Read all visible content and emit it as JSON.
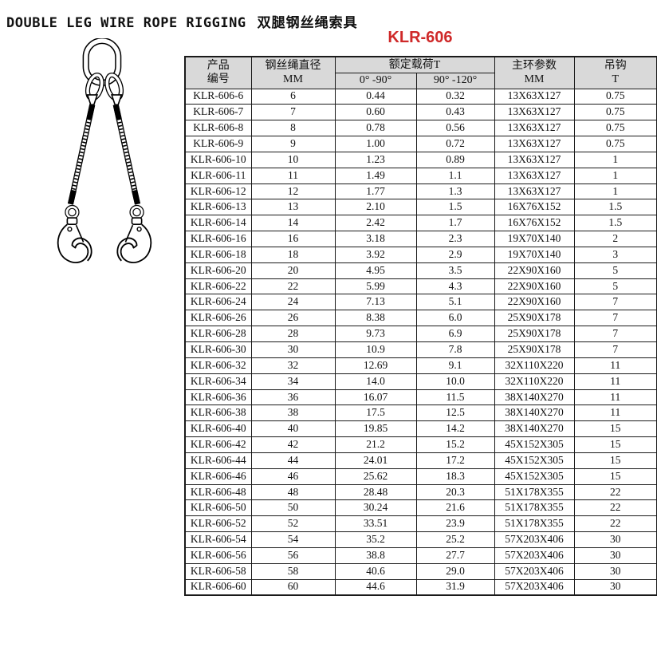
{
  "page": {
    "title_en": "DOUBLE LEG WIRE ROPE RIGGING",
    "title_zh": "双腿钢丝绳索具",
    "model": "KLR-606"
  },
  "colors": {
    "model_red": "#cf2929",
    "header_bg": "#d9d9d9",
    "border": "#1a1a1a"
  },
  "illustration": {
    "name": "double-leg-wire-rope-sling-line-drawing",
    "parts": [
      "master-link",
      "connecting-links",
      "wire-rope-legs",
      "self-locking-hooks"
    ]
  },
  "table": {
    "headers": {
      "product_code": {
        "line1": "产品",
        "line2": "编号"
      },
      "rope_diameter": {
        "line1": "钢丝绳直径",
        "line2": "MM"
      },
      "rated_load": "额定载荷T",
      "angle_0_90": "0° -90°",
      "angle_90_120": "90° -120°",
      "master_ring": {
        "line1": "主环参数",
        "line2": "MM"
      },
      "hook": {
        "line1": "吊钩",
        "line2": "T"
      }
    },
    "rows": [
      [
        "KLR-606-6",
        "6",
        "0.44",
        "0.32",
        "13X63X127",
        "0.75"
      ],
      [
        "KLR-606-7",
        "7",
        "0.60",
        "0.43",
        "13X63X127",
        "0.75"
      ],
      [
        "KLR-606-8",
        "8",
        "0.78",
        "0.56",
        "13X63X127",
        "0.75"
      ],
      [
        "KLR-606-9",
        "9",
        "1.00",
        "0.72",
        "13X63X127",
        "0.75"
      ],
      [
        "KLR-606-10",
        "10",
        "1.23",
        "0.89",
        "13X63X127",
        "1"
      ],
      [
        "KLR-606-11",
        "11",
        "1.49",
        "1.1",
        "13X63X127",
        "1"
      ],
      [
        "KLR-606-12",
        "12",
        "1.77",
        "1.3",
        "13X63X127",
        "1"
      ],
      [
        "KLR-606-13",
        "13",
        "2.10",
        "1.5",
        "16X76X152",
        "1.5"
      ],
      [
        "KLR-606-14",
        "14",
        "2.42",
        "1.7",
        "16X76X152",
        "1.5"
      ],
      [
        "KLR-606-16",
        "16",
        "3.18",
        "2.3",
        "19X70X140",
        "2"
      ],
      [
        "KLR-606-18",
        "18",
        "3.92",
        "2.9",
        "19X70X140",
        "3"
      ],
      [
        "KLR-606-20",
        "20",
        "4.95",
        "3.5",
        "22X90X160",
        "5"
      ],
      [
        "KLR-606-22",
        "22",
        "5.99",
        "4.3",
        "22X90X160",
        "5"
      ],
      [
        "KLR-606-24",
        "24",
        "7.13",
        "5.1",
        "22X90X160",
        "7"
      ],
      [
        "KLR-606-26",
        "26",
        "8.38",
        "6.0",
        "25X90X178",
        "7"
      ],
      [
        "KLR-606-28",
        "28",
        "9.73",
        "6.9",
        "25X90X178",
        "7"
      ],
      [
        "KLR-606-30",
        "30",
        "10.9",
        "7.8",
        "25X90X178",
        "7"
      ],
      [
        "KLR-606-32",
        "32",
        "12.69",
        "9.1",
        "32X110X220",
        "11"
      ],
      [
        "KLR-606-34",
        "34",
        "14.0",
        "10.0",
        "32X110X220",
        "11"
      ],
      [
        "KLR-606-36",
        "36",
        "16.07",
        "11.5",
        "38X140X270",
        "11"
      ],
      [
        "KLR-606-38",
        "38",
        "17.5",
        "12.5",
        "38X140X270",
        "11"
      ],
      [
        "KLR-606-40",
        "40",
        "19.85",
        "14.2",
        "38X140X270",
        "15"
      ],
      [
        "KLR-606-42",
        "42",
        "21.2",
        "15.2",
        "45X152X305",
        "15"
      ],
      [
        "KLR-606-44",
        "44",
        "24.01",
        "17.2",
        "45X152X305",
        "15"
      ],
      [
        "KLR-606-46",
        "46",
        "25.62",
        "18.3",
        "45X152X305",
        "15"
      ],
      [
        "KLR-606-48",
        "48",
        "28.48",
        "20.3",
        "51X178X355",
        "22"
      ],
      [
        "KLR-606-50",
        "50",
        "30.24",
        "21.6",
        "51X178X355",
        "22"
      ],
      [
        "KLR-606-52",
        "52",
        "33.51",
        "23.9",
        "51X178X355",
        "22"
      ],
      [
        "KLR-606-54",
        "54",
        "35.2",
        "25.2",
        "57X203X406",
        "30"
      ],
      [
        "KLR-606-56",
        "56",
        "38.8",
        "27.7",
        "57X203X406",
        "30"
      ],
      [
        "KLR-606-58",
        "58",
        "40.6",
        "29.0",
        "57X203X406",
        "30"
      ],
      [
        "KLR-606-60",
        "60",
        "44.6",
        "31.9",
        "57X203X406",
        "30"
      ]
    ]
  }
}
